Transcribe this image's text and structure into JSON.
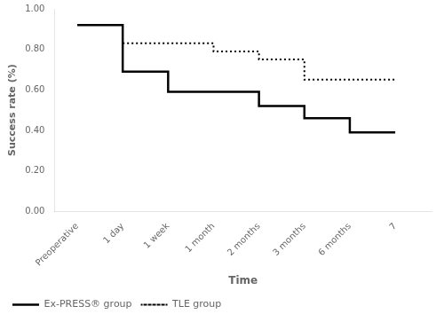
{
  "chart_data": {
    "type": "line",
    "xlabel": "Time",
    "ylabel": "Success rate (%)",
    "series": [
      {
        "name": "Ex-PRESS® group",
        "color": "black",
        "line_style": "solid",
        "x": [
          0,
          1,
          1,
          2,
          2,
          3,
          3,
          4,
          4,
          5,
          5,
          6,
          6,
          7
        ],
        "values": [
          0.92,
          0.92,
          0.69,
          0.69,
          0.59,
          0.59,
          0.59,
          0.59,
          0.52,
          0.52,
          0.46,
          0.46,
          0.39,
          0.39
        ]
      },
      {
        "name": "TLE group",
        "color": "black",
        "line_style": "dotted",
        "x": [
          1,
          2,
          2,
          3,
          3,
          4,
          4,
          5,
          5,
          5.6,
          5.6,
          6,
          6,
          7
        ],
        "values": [
          0.83,
          0.83,
          0.83,
          0.83,
          0.79,
          0.79,
          0.75,
          0.75,
          0.65,
          0.65,
          0.65,
          0.65,
          0.65,
          0.65
        ]
      }
    ],
    "xlim": [
      -0.5,
      7.8
    ],
    "xticks": [
      {
        "value": 0,
        "label": "Preoperative"
      },
      {
        "value": 1,
        "label": "1 day"
      },
      {
        "value": 2,
        "label": "1 week"
      },
      {
        "value": 3,
        "label": "1 month"
      },
      {
        "value": 4,
        "label": "2 months"
      },
      {
        "value": 5,
        "label": "3 months"
      },
      {
        "value": 6,
        "label": "6 months"
      },
      7
    ],
    "ylim": [
      0.0,
      1.0
    ],
    "yticks": [
      {
        "value": 0.0,
        "label": "0.00"
      },
      {
        "value": 0.2,
        "label": "0.20"
      },
      {
        "value": 0.4,
        "label": "0.40"
      },
      {
        "value": 0.6,
        "label": "0.60"
      },
      {
        "value": 0.8,
        "label": "0.80"
      },
      {
        "value": 1.0,
        "label": "1.00"
      }
    ],
    "grid": false,
    "legend": "lower left"
  }
}
